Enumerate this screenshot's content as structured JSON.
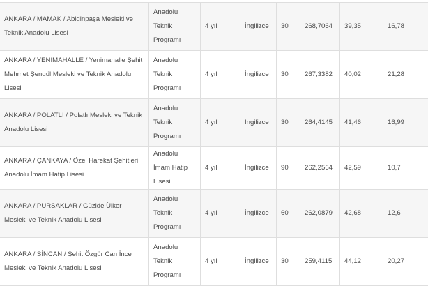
{
  "rows": [
    {
      "school": "ANKARA / MAMAK / Abidinpaşa Mesleki ve Teknik Anadolu Lisesi",
      "type": "Anadolu Teknik Programı",
      "duration": "4 yıl",
      "language": "İngilizce",
      "quota": "30",
      "score": "268,7064",
      "pct1": "39,35",
      "pct2": "16,78"
    },
    {
      "school": "ANKARA / YENİMAHALLE / Yenimahalle Şehit Mehmet Şengül Mesleki ve Teknik Anadolu Lisesi",
      "type": "Anadolu Teknik Programı",
      "duration": "4 yıl",
      "language": "İngilizce",
      "quota": "30",
      "score": "267,3382",
      "pct1": "40,02",
      "pct2": "21,28"
    },
    {
      "school": "ANKARA / POLATLI / Polatlı Mesleki ve Teknik Anadolu Lisesi",
      "type": "Anadolu Teknik Programı",
      "duration": "4 yıl",
      "language": "İngilizce",
      "quota": "30",
      "score": "264,4145",
      "pct1": "41,46",
      "pct2": "16,99"
    },
    {
      "school": "ANKARA / ÇANKAYA / Özel Harekat Şehitleri Anadolu İmam Hatip Lisesi",
      "type": "Anadolu İmam Hatip Lisesi",
      "duration": "4 yıl",
      "language": "İngilizce",
      "quota": "90",
      "score": "262,2564",
      "pct1": "42,59",
      "pct2": "10,7"
    },
    {
      "school": "ANKARA / PURSAKLAR / Güzide Ülker Mesleki ve Teknik Anadolu Lisesi",
      "type": "Anadolu Teknik Programı",
      "duration": "4 yıl",
      "language": "İngilizce",
      "quota": "60",
      "score": "262,0879",
      "pct1": "42,68",
      "pct2": "12,6"
    },
    {
      "school": "ANKARA / SİNCAN / Şehit Özgür Can İnce Mesleki ve Teknik Anadolu Lisesi",
      "type": "Anadolu Teknik Programı",
      "duration": "4 yıl",
      "language": "İngilizce",
      "quota": "30",
      "score": "259,4115",
      "pct1": "44,12",
      "pct2": "20,27"
    }
  ]
}
